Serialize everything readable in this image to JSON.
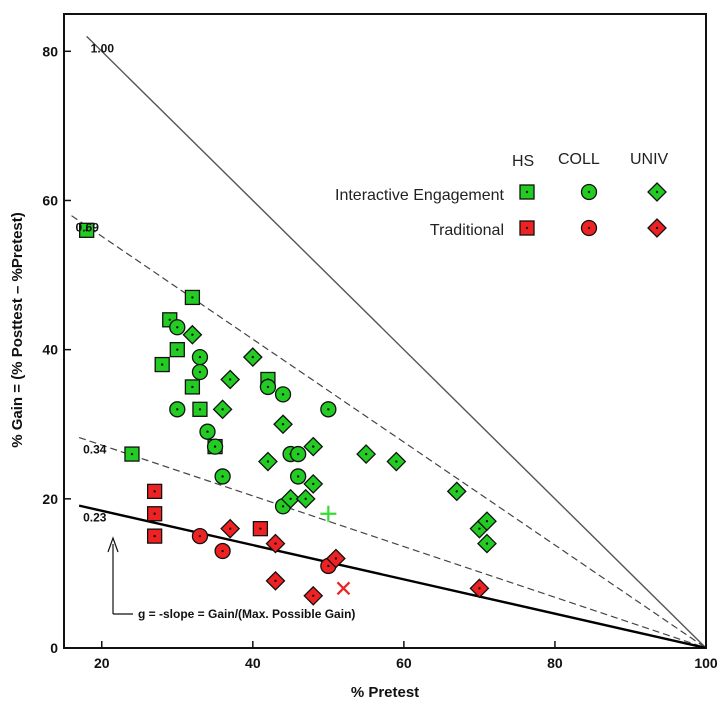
{
  "chart_data": {
    "type": "scatter",
    "xlabel": "% Pretest",
    "ylabel": "% Gain = (% Posttest – %Pretest)",
    "xlim": [
      15,
      100
    ],
    "ylim": [
      0,
      85
    ],
    "xticks": [
      20,
      40,
      60,
      80,
      100
    ],
    "yticks": [
      0,
      20,
      40,
      60,
      80
    ],
    "x_tick_labels": [
      "20",
      "40",
      "60",
      "80",
      "100"
    ],
    "y_tick_labels": [
      "0",
      "20",
      "40",
      "60",
      "80"
    ],
    "grid": false,
    "legend_position": "top-right",
    "legend": {
      "columns": [
        "HS",
        "COLL",
        "UNIV"
      ],
      "rows": [
        {
          "label": "Interactive Engagement",
          "color": "#22cc22"
        },
        {
          "label": "Traditional",
          "color": "#ee2222"
        }
      ]
    },
    "reference_lines": [
      {
        "label": "1.00",
        "g": 1.0,
        "style": "solid",
        "x_start": 18
      },
      {
        "label": "0.69",
        "g": 0.69,
        "style": "dashed",
        "x_start": 16
      },
      {
        "label": "0.34",
        "g": 0.34,
        "style": "dashed",
        "x_start": 17
      },
      {
        "label": "0.23",
        "g": 0.23,
        "style": "bold",
        "x_start": 17
      }
    ],
    "annotation": "g = -slope  = Gain/(Max. Possible Gain)",
    "series": [
      {
        "name": "Interactive Engagement HS",
        "shape": "square",
        "color": "#22cc22",
        "points": [
          [
            18,
            56
          ],
          [
            24,
            26
          ],
          [
            28,
            38
          ],
          [
            29,
            44
          ],
          [
            30,
            40
          ],
          [
            32,
            47
          ],
          [
            32,
            35
          ],
          [
            33,
            32
          ],
          [
            35,
            27
          ],
          [
            42,
            36
          ]
        ]
      },
      {
        "name": "Interactive Engagement COLL",
        "shape": "circle",
        "color": "#22cc22",
        "points": [
          [
            30,
            43
          ],
          [
            30,
            32
          ],
          [
            33,
            39
          ],
          [
            33,
            37
          ],
          [
            34,
            29
          ],
          [
            35,
            27
          ],
          [
            36,
            23
          ],
          [
            42,
            35
          ],
          [
            44,
            34
          ],
          [
            44,
            19
          ],
          [
            45,
            26
          ],
          [
            46,
            26
          ],
          [
            46,
            23
          ],
          [
            50,
            32
          ]
        ]
      },
      {
        "name": "Interactive Engagement UNIV",
        "shape": "diamond",
        "color": "#22cc22",
        "points": [
          [
            32,
            42
          ],
          [
            36,
            32
          ],
          [
            37,
            36
          ],
          [
            40,
            39
          ],
          [
            42,
            25
          ],
          [
            44,
            30
          ],
          [
            45,
            20
          ],
          [
            47,
            20
          ],
          [
            48,
            22
          ],
          [
            48,
            27
          ],
          [
            55,
            26
          ],
          [
            59,
            25
          ],
          [
            67,
            21
          ],
          [
            70,
            16
          ],
          [
            71,
            17
          ],
          [
            71,
            14
          ]
        ]
      },
      {
        "name": "Traditional HS",
        "shape": "square",
        "color": "#ee2222",
        "points": [
          [
            27,
            21
          ],
          [
            27,
            18
          ],
          [
            27,
            15
          ],
          [
            41,
            16
          ]
        ]
      },
      {
        "name": "Traditional COLL",
        "shape": "circle",
        "color": "#ee2222",
        "points": [
          [
            33,
            15
          ],
          [
            36,
            13
          ],
          [
            50,
            11
          ]
        ]
      },
      {
        "name": "Traditional UNIV",
        "shape": "diamond",
        "color": "#ee2222",
        "points": [
          [
            37,
            16
          ],
          [
            43,
            14
          ],
          [
            43,
            9
          ],
          [
            48,
            7
          ],
          [
            51,
            12
          ],
          [
            70,
            8
          ]
        ]
      }
    ],
    "markers": [
      {
        "symbol": "+",
        "color": "#33dd33",
        "x": 50,
        "y": 18
      },
      {
        "symbol": "x",
        "color": "#ee2222",
        "x": 52,
        "y": 8
      }
    ]
  }
}
